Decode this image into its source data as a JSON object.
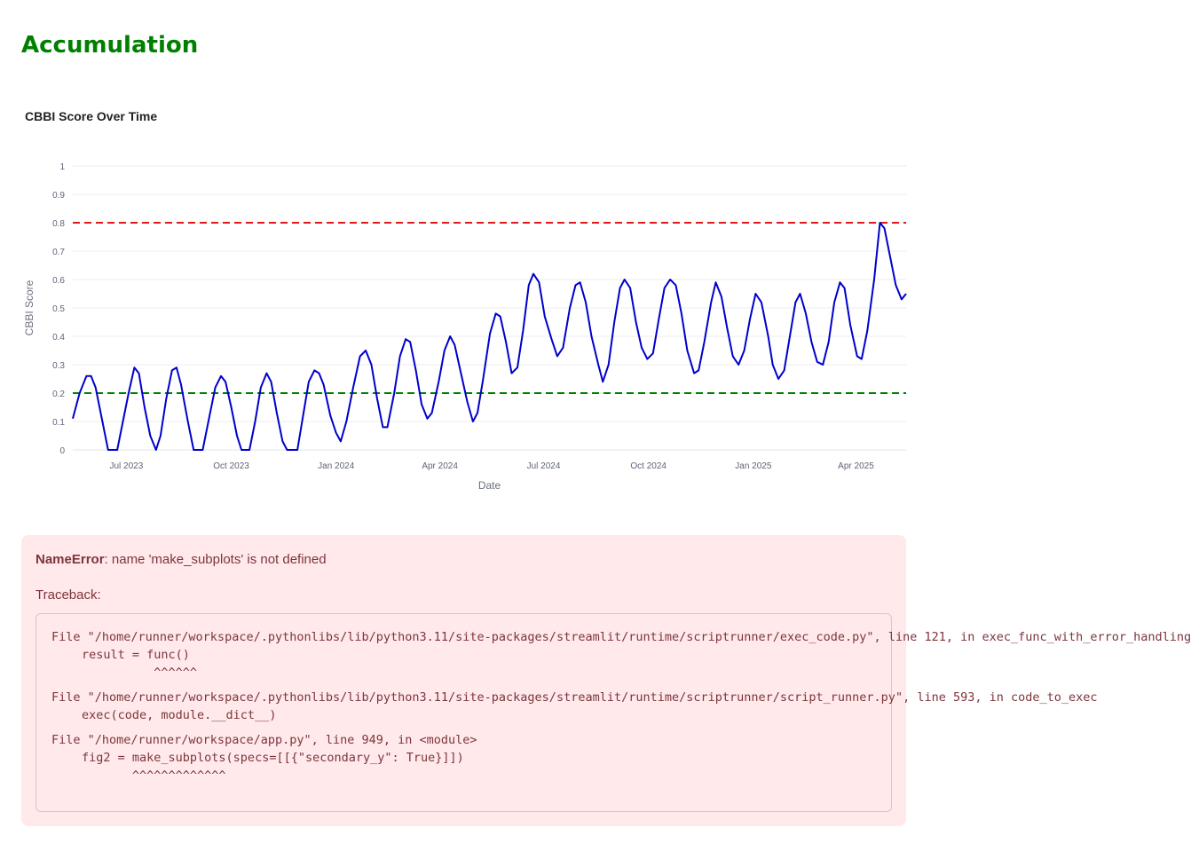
{
  "header": {
    "title": "Accumulation"
  },
  "chart_data": {
    "type": "line",
    "title": "CBBI Score Over Time",
    "xlabel": "Date",
    "ylabel": "CBBI Score",
    "ylim": [
      0,
      1
    ],
    "y_ticks": [
      "0",
      "0.1",
      "0.2",
      "0.3",
      "0.4",
      "0.5",
      "0.6",
      "0.7",
      "0.8",
      "0.9",
      "1"
    ],
    "x_ticks": [
      "Jul 2023",
      "Oct 2023",
      "Jan 2024",
      "Apr 2024",
      "Jul 2024",
      "Oct 2024",
      "Jan 2025",
      "Apr 2025"
    ],
    "x_tick_dates": [
      "2023-07-01",
      "2023-10-01",
      "2024-01-01",
      "2024-04-01",
      "2024-07-01",
      "2024-10-01",
      "2025-01-01",
      "2025-04-01"
    ],
    "x_range": [
      "2023-05-15",
      "2025-05-15"
    ],
    "grid": true,
    "legend": "none",
    "thresholds": [
      {
        "value": 0.8,
        "color": "#e31a1c",
        "style": "dashed"
      },
      {
        "value": 0.2,
        "color": "#008000",
        "style": "dashed"
      }
    ],
    "series": [
      {
        "color": "#0000cc",
        "points": [
          [
            "2023-05-15",
            0.11
          ],
          [
            "2023-05-21",
            0.2
          ],
          [
            "2023-05-27",
            0.26
          ],
          [
            "2023-05-31",
            0.26
          ],
          [
            "2023-06-04",
            0.22
          ],
          [
            "2023-06-10",
            0.1
          ],
          [
            "2023-06-15",
            0.0
          ],
          [
            "2023-06-23",
            0.0
          ],
          [
            "2023-06-28",
            0.1
          ],
          [
            "2023-07-03",
            0.2
          ],
          [
            "2023-07-08",
            0.29
          ],
          [
            "2023-07-12",
            0.27
          ],
          [
            "2023-07-17",
            0.15
          ],
          [
            "2023-07-22",
            0.05
          ],
          [
            "2023-07-27",
            0.0
          ],
          [
            "2023-07-31",
            0.05
          ],
          [
            "2023-08-05",
            0.18
          ],
          [
            "2023-08-10",
            0.28
          ],
          [
            "2023-08-14",
            0.29
          ],
          [
            "2023-08-18",
            0.23
          ],
          [
            "2023-08-24",
            0.1
          ],
          [
            "2023-08-29",
            0.0
          ],
          [
            "2023-09-06",
            0.0
          ],
          [
            "2023-09-12",
            0.12
          ],
          [
            "2023-09-17",
            0.22
          ],
          [
            "2023-09-22",
            0.26
          ],
          [
            "2023-09-26",
            0.24
          ],
          [
            "2023-10-01",
            0.15
          ],
          [
            "2023-10-06",
            0.05
          ],
          [
            "2023-10-10",
            0.0
          ],
          [
            "2023-10-17",
            0.0
          ],
          [
            "2023-10-22",
            0.1
          ],
          [
            "2023-10-27",
            0.22
          ],
          [
            "2023-11-01",
            0.27
          ],
          [
            "2023-11-05",
            0.24
          ],
          [
            "2023-11-10",
            0.13
          ],
          [
            "2023-11-15",
            0.03
          ],
          [
            "2023-11-19",
            0.0
          ],
          [
            "2023-11-28",
            0.0
          ],
          [
            "2023-12-03",
            0.12
          ],
          [
            "2023-12-08",
            0.24
          ],
          [
            "2023-12-13",
            0.28
          ],
          [
            "2023-12-17",
            0.27
          ],
          [
            "2023-12-21",
            0.23
          ],
          [
            "2023-12-27",
            0.12
          ],
          [
            "2024-01-01",
            0.06
          ],
          [
            "2024-01-05",
            0.03
          ],
          [
            "2024-01-10",
            0.1
          ],
          [
            "2024-01-16",
            0.22
          ],
          [
            "2024-01-22",
            0.33
          ],
          [
            "2024-01-27",
            0.35
          ],
          [
            "2024-02-01",
            0.3
          ],
          [
            "2024-02-06",
            0.18
          ],
          [
            "2024-02-11",
            0.08
          ],
          [
            "2024-02-15",
            0.08
          ],
          [
            "2024-02-21",
            0.2
          ],
          [
            "2024-02-26",
            0.33
          ],
          [
            "2024-03-02",
            0.39
          ],
          [
            "2024-03-06",
            0.38
          ],
          [
            "2024-03-11",
            0.28
          ],
          [
            "2024-03-16",
            0.16
          ],
          [
            "2024-03-21",
            0.11
          ],
          [
            "2024-03-25",
            0.13
          ],
          [
            "2024-03-31",
            0.24
          ],
          [
            "2024-04-05",
            0.35
          ],
          [
            "2024-04-10",
            0.4
          ],
          [
            "2024-04-14",
            0.37
          ],
          [
            "2024-04-19",
            0.28
          ],
          [
            "2024-04-25",
            0.17
          ],
          [
            "2024-04-30",
            0.1
          ],
          [
            "2024-05-04",
            0.13
          ],
          [
            "2024-05-09",
            0.25
          ],
          [
            "2024-05-15",
            0.41
          ],
          [
            "2024-05-20",
            0.48
          ],
          [
            "2024-05-24",
            0.47
          ],
          [
            "2024-05-29",
            0.38
          ],
          [
            "2024-06-03",
            0.27
          ],
          [
            "2024-06-08",
            0.29
          ],
          [
            "2024-06-13",
            0.42
          ],
          [
            "2024-06-18",
            0.58
          ],
          [
            "2024-06-22",
            0.62
          ],
          [
            "2024-06-27",
            0.59
          ],
          [
            "2024-07-02",
            0.47
          ],
          [
            "2024-07-08",
            0.39
          ],
          [
            "2024-07-13",
            0.33
          ],
          [
            "2024-07-18",
            0.36
          ],
          [
            "2024-07-24",
            0.5
          ],
          [
            "2024-07-29",
            0.58
          ],
          [
            "2024-08-02",
            0.59
          ],
          [
            "2024-08-07",
            0.52
          ],
          [
            "2024-08-12",
            0.4
          ],
          [
            "2024-08-18",
            0.3
          ],
          [
            "2024-08-22",
            0.24
          ],
          [
            "2024-08-27",
            0.3
          ],
          [
            "2024-09-01",
            0.45
          ],
          [
            "2024-09-06",
            0.57
          ],
          [
            "2024-09-10",
            0.6
          ],
          [
            "2024-09-15",
            0.57
          ],
          [
            "2024-09-20",
            0.45
          ],
          [
            "2024-09-25",
            0.36
          ],
          [
            "2024-09-30",
            0.32
          ],
          [
            "2024-10-05",
            0.34
          ],
          [
            "2024-10-10",
            0.46
          ],
          [
            "2024-10-15",
            0.57
          ],
          [
            "2024-10-20",
            0.6
          ],
          [
            "2024-10-25",
            0.58
          ],
          [
            "2024-10-30",
            0.48
          ],
          [
            "2024-11-04",
            0.35
          ],
          [
            "2024-11-10",
            0.27
          ],
          [
            "2024-11-14",
            0.28
          ],
          [
            "2024-11-19",
            0.38
          ],
          [
            "2024-11-25",
            0.52
          ],
          [
            "2024-11-29",
            0.59
          ],
          [
            "2024-12-04",
            0.54
          ],
          [
            "2024-12-09",
            0.43
          ],
          [
            "2024-12-14",
            0.33
          ],
          [
            "2024-12-19",
            0.3
          ],
          [
            "2024-12-24",
            0.35
          ],
          [
            "2024-12-29",
            0.46
          ],
          [
            "2025-01-03",
            0.55
          ],
          [
            "2025-01-08",
            0.52
          ],
          [
            "2025-01-14",
            0.4
          ],
          [
            "2025-01-18",
            0.3
          ],
          [
            "2025-01-23",
            0.25
          ],
          [
            "2025-01-28",
            0.28
          ],
          [
            "2025-02-02",
            0.4
          ],
          [
            "2025-02-07",
            0.52
          ],
          [
            "2025-02-11",
            0.55
          ],
          [
            "2025-02-16",
            0.48
          ],
          [
            "2025-02-21",
            0.38
          ],
          [
            "2025-02-26",
            0.31
          ],
          [
            "2025-03-03",
            0.3
          ],
          [
            "2025-03-08",
            0.38
          ],
          [
            "2025-03-13",
            0.52
          ],
          [
            "2025-03-18",
            0.59
          ],
          [
            "2025-03-22",
            0.57
          ],
          [
            "2025-03-27",
            0.44
          ],
          [
            "2025-04-02",
            0.33
          ],
          [
            "2025-04-06",
            0.32
          ],
          [
            "2025-04-11",
            0.42
          ],
          [
            "2025-04-17",
            0.6
          ],
          [
            "2025-04-22",
            0.8
          ],
          [
            "2025-04-26",
            0.78
          ],
          [
            "2025-05-01",
            0.68
          ],
          [
            "2025-05-06",
            0.58
          ],
          [
            "2025-05-11",
            0.53
          ],
          [
            "2025-05-15",
            0.55
          ]
        ]
      }
    ]
  },
  "error": {
    "name": "NameError",
    "message": ": name 'make_subplots' is not defined",
    "traceback_label": "Traceback:",
    "frames": [
      {
        "location": "File \"/home/runner/workspace/.pythonlibs/lib/python3.11/site-packages/streamlit/runtime/scriptrunner/exec_code.py\", line 121, in exec_func_with_error_handling",
        "code": "result = func()",
        "marker": "          ^^^^^^"
      },
      {
        "location": "File \"/home/runner/workspace/.pythonlibs/lib/python3.11/site-packages/streamlit/runtime/scriptrunner/script_runner.py\", line 593, in code_to_exec",
        "code": "exec(code, module.__dict__)",
        "marker": ""
      },
      {
        "location": "File \"/home/runner/workspace/app.py\", line 949, in <module>",
        "code": "fig2 = make_subplots(specs=[[{\"secondary_y\": True}]])",
        "marker": "       ^^^^^^^^^^^^^"
      }
    ]
  }
}
